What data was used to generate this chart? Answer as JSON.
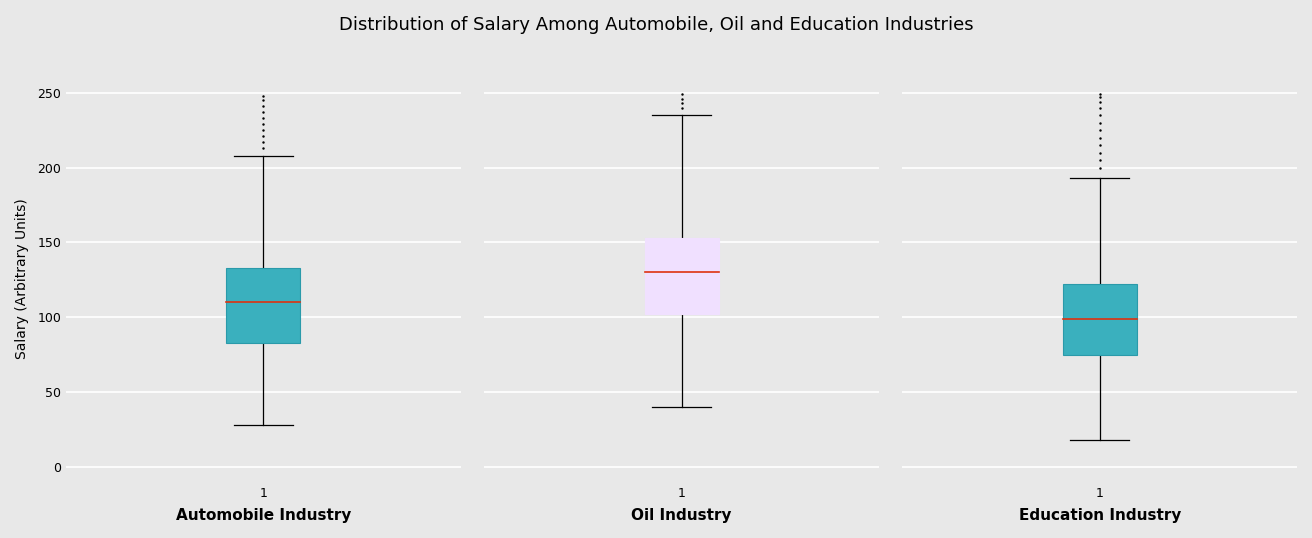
{
  "title": "Distribution of Salary Among Automobile, Oil and Education Industries",
  "ylabel": "Salary (Arbitrary Units)",
  "background_color": "#e8e8e8",
  "ylim": [
    -10,
    262
  ],
  "yticks": [
    0,
    50,
    100,
    150,
    200,
    250
  ],
  "panels": [
    {
      "xlabel": "Automobile Industry",
      "box_color": "#3ab0be",
      "box_edge_color": "#2a9aaa",
      "median_color": "#dd3311",
      "Q1": 83,
      "median": 110,
      "Q3": 133,
      "whisker_low": 28,
      "whisker_high": 208,
      "fliers": [
        213,
        217,
        221,
        225,
        229,
        233,
        237,
        241,
        245,
        248
      ]
    },
    {
      "xlabel": "Oil Industry",
      "box_color": "#f0e0ff",
      "box_edge_color": "#f0e0ff",
      "median_color": "#dd3311",
      "Q1": 102,
      "median": 130,
      "Q3": 153,
      "whisker_low": 40,
      "whisker_high": 235,
      "fliers": [
        240,
        243,
        246,
        249
      ]
    },
    {
      "xlabel": "Education Industry",
      "box_color": "#3ab0be",
      "box_edge_color": "#2a9aaa",
      "median_color": "#dd3311",
      "Q1": 75,
      "median": 99,
      "Q3": 122,
      "whisker_low": 18,
      "whisker_high": 193,
      "fliers": [
        200,
        205,
        210,
        215,
        220,
        225,
        230,
        235,
        240,
        244,
        247,
        249
      ]
    }
  ]
}
